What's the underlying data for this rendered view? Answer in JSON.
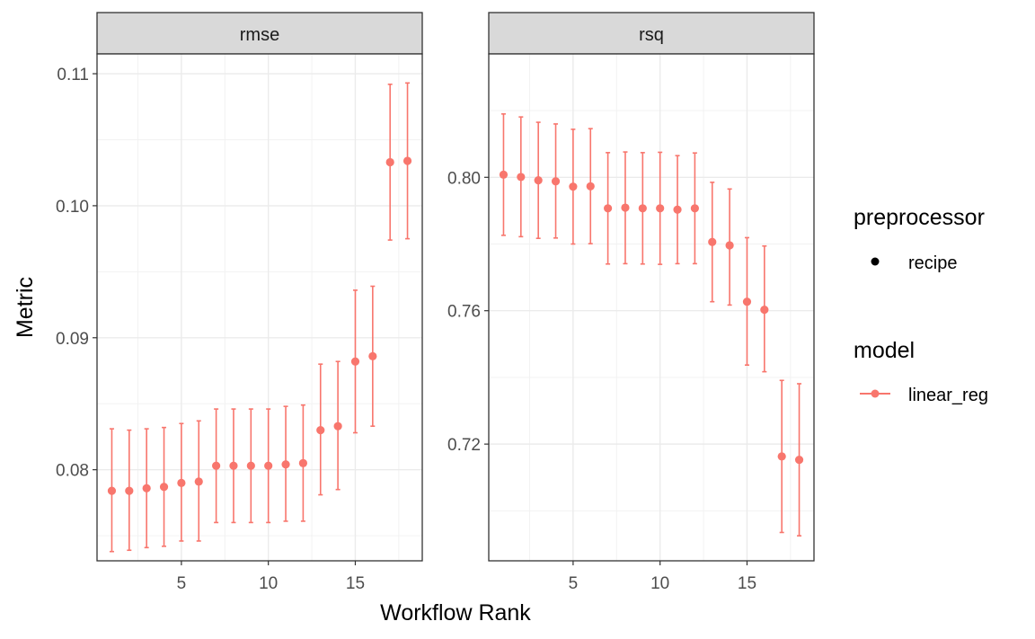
{
  "chart_data": [
    {
      "type": "scatter",
      "facet": "rmse",
      "x": [
        1,
        2,
        3,
        4,
        5,
        6,
        7,
        8,
        9,
        10,
        11,
        12,
        13,
        14,
        15,
        16,
        17,
        18
      ],
      "y": [
        0.0784,
        0.0784,
        0.0786,
        0.0787,
        0.079,
        0.0791,
        0.0803,
        0.0803,
        0.0803,
        0.0803,
        0.0804,
        0.0805,
        0.083,
        0.0833,
        0.0882,
        0.0886,
        0.1033,
        0.1034
      ],
      "y_lower": [
        0.0738,
        0.0739,
        0.0741,
        0.0742,
        0.0746,
        0.0746,
        0.076,
        0.076,
        0.076,
        0.076,
        0.0761,
        0.0761,
        0.0781,
        0.0785,
        0.0828,
        0.0833,
        0.0974,
        0.0975
      ],
      "y_upper": [
        0.0831,
        0.083,
        0.0831,
        0.0832,
        0.0835,
        0.0837,
        0.0846,
        0.0846,
        0.0846,
        0.0846,
        0.0848,
        0.0849,
        0.088,
        0.0882,
        0.0936,
        0.0939,
        0.1092,
        0.1093
      ],
      "xlim": [
        0.15,
        18.85
      ],
      "ylim": [
        0.0731,
        0.1115
      ],
      "xticks": [
        5,
        10,
        15
      ],
      "yticks": [
        0.08,
        0.09,
        0.1,
        0.11
      ],
      "ytick_labels": [
        "0.08",
        "0.09",
        "0.10",
        "0.11"
      ]
    },
    {
      "type": "scatter",
      "facet": "rsq",
      "x": [
        1,
        2,
        3,
        4,
        5,
        6,
        7,
        8,
        9,
        10,
        11,
        12,
        13,
        14,
        15,
        16,
        17,
        18
      ],
      "y": [
        0.8008,
        0.8001,
        0.7991,
        0.7988,
        0.7972,
        0.7973,
        0.7907,
        0.7909,
        0.7907,
        0.7907,
        0.7903,
        0.7907,
        0.7806,
        0.7796,
        0.7627,
        0.7603,
        0.7163,
        0.7153
      ],
      "y_lower": [
        0.7826,
        0.7822,
        0.7817,
        0.7818,
        0.78,
        0.7801,
        0.774,
        0.7741,
        0.774,
        0.7739,
        0.7741,
        0.7741,
        0.7627,
        0.7617,
        0.7437,
        0.7417,
        0.6935,
        0.6925
      ],
      "y_upper": [
        0.819,
        0.8181,
        0.8165,
        0.816,
        0.8144,
        0.8146,
        0.8074,
        0.8076,
        0.8074,
        0.8075,
        0.8065,
        0.8073,
        0.7985,
        0.7965,
        0.7819,
        0.7794,
        0.7391,
        0.7381
      ],
      "xlim": [
        0.15,
        18.85
      ],
      "ylim": [
        0.685,
        0.837
      ],
      "xticks": [
        5,
        10,
        15
      ],
      "yticks": [
        0.72,
        0.76,
        0.8
      ],
      "ytick_labels": [
        "0.72",
        "0.76",
        "0.80"
      ]
    }
  ],
  "facets": [
    "rmse",
    "rsq"
  ],
  "xlabel": "Workflow Rank",
  "ylabel": "Metric",
  "series_color": "#F8766D",
  "point_shape": "circle",
  "grid": true,
  "legend": {
    "placement": "right",
    "preprocessor_title": "preprocessor",
    "preprocessor_label": "recipe",
    "model_title": "model",
    "model_label": "linear_reg"
  }
}
